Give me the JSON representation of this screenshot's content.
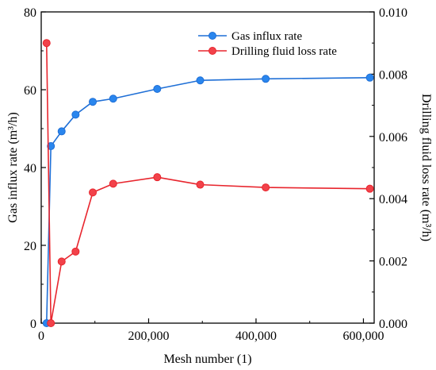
{
  "chart_data": {
    "type": "line",
    "xlabel": "Mesh number (1)",
    "ylabel_left": "Gas influx rate (m³/h)",
    "ylabel_right": "Drilling fluid loss rate (m³/h)",
    "xlim": [
      0,
      620000
    ],
    "ylim_left": [
      0,
      80
    ],
    "ylim_right": [
      0,
      0.01
    ],
    "x_ticks": [
      0,
      200000,
      400000,
      600000
    ],
    "x_tick_labels": [
      "0",
      "200,000",
      "400,000",
      "600,000"
    ],
    "y_left_ticks": [
      0,
      20,
      40,
      60,
      80
    ],
    "y_left_tick_labels": [
      "0",
      "20",
      "40",
      "60",
      "80"
    ],
    "y_right_ticks": [
      0,
      0.002,
      0.004,
      0.006,
      0.008,
      0.01
    ],
    "y_right_tick_labels": [
      "0.000",
      "0.002",
      "0.004",
      "0.006",
      "0.008",
      "0.010"
    ],
    "grid": false,
    "legend_position": "top-right",
    "series": [
      {
        "name": "Gas influx rate",
        "axis": "left",
        "color": "#1f6fd6",
        "marker_color": "#2a86ee",
        "x": [
          10000,
          18000,
          38000,
          64000,
          96000,
          134000,
          216000,
          296000,
          418000,
          612000
        ],
        "y": [
          0,
          45.5,
          49.3,
          53.6,
          56.9,
          57.7,
          60.2,
          62.4,
          62.8,
          63.1
        ]
      },
      {
        "name": "Drilling fluid loss rate",
        "axis": "right",
        "color": "#e8262e",
        "marker_color": "#f2424a",
        "x": [
          10000,
          18000,
          38000,
          64000,
          96000,
          134000,
          216000,
          296000,
          418000,
          612000
        ],
        "y": [
          0.009,
          0.0,
          0.00198,
          0.0023,
          0.0042,
          0.00448,
          0.00469,
          0.00445,
          0.00436,
          0.00432
        ]
      }
    ]
  }
}
